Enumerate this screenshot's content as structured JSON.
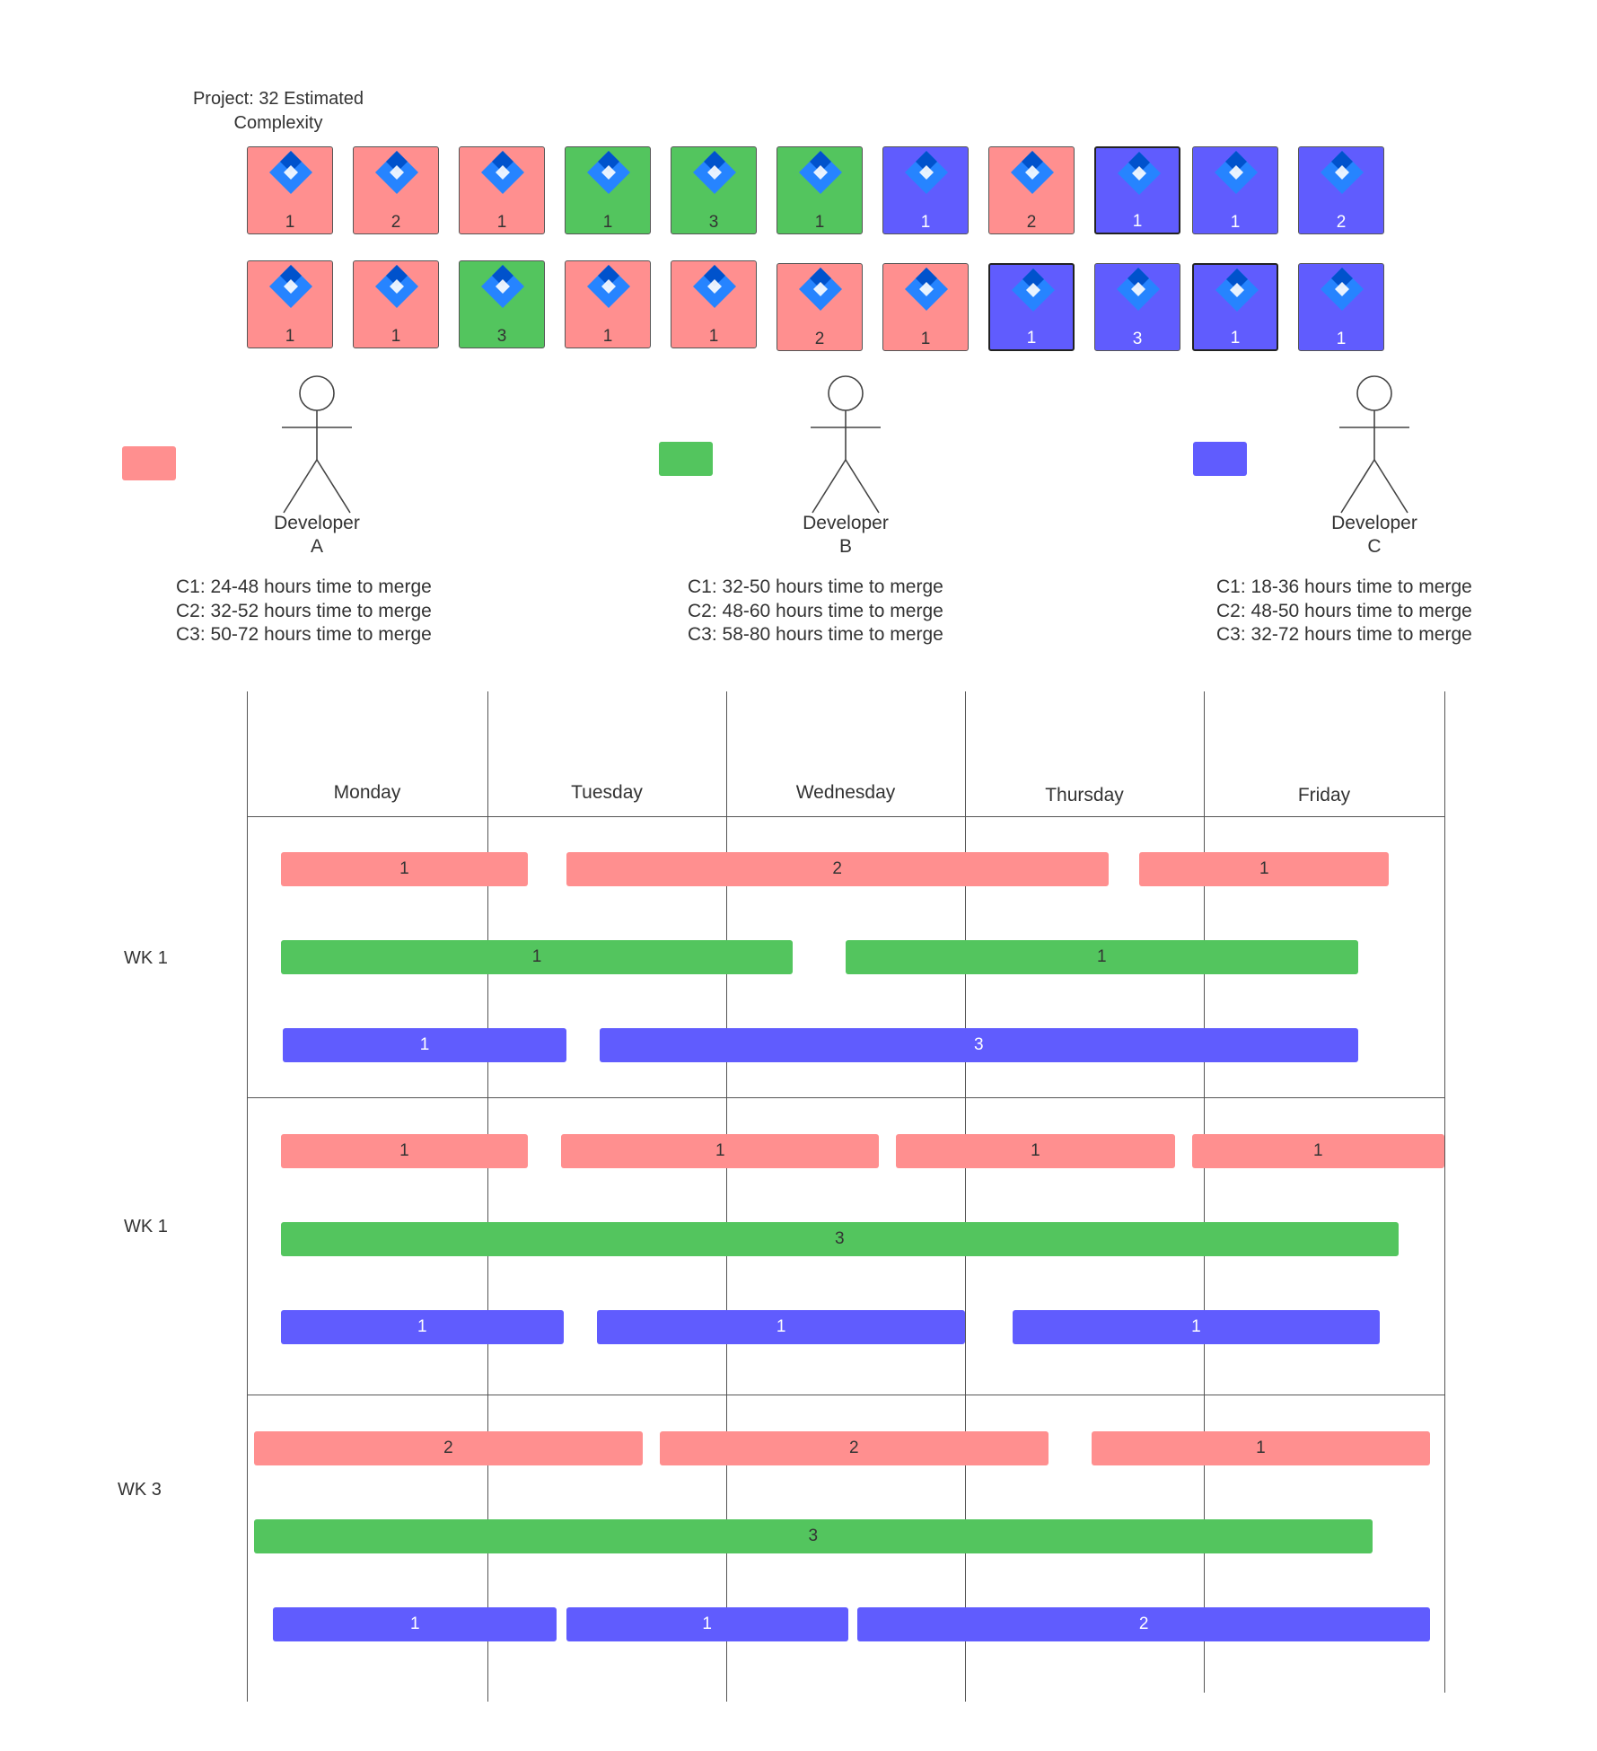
{
  "colors": {
    "red": "#FF8F8F",
    "green": "#53C55E",
    "blue": "#605CFE",
    "icon_light": "#2684FF",
    "icon_dark": "#0052CC"
  },
  "project": {
    "title_line1": "Project: 32 Estimated",
    "title_line2": "Complexity"
  },
  "tickets": {
    "row1": [
      {
        "color": "red",
        "value": "1"
      },
      {
        "color": "red",
        "value": "2"
      },
      {
        "color": "red",
        "value": "1"
      },
      {
        "color": "green",
        "value": "1"
      },
      {
        "color": "green",
        "value": "3"
      },
      {
        "color": "green",
        "value": "1"
      },
      {
        "color": "blue",
        "value": "1"
      },
      {
        "color": "red",
        "value": "2"
      },
      {
        "color": "blue",
        "value": "1"
      },
      {
        "color": "blue",
        "value": "1"
      },
      {
        "color": "blue",
        "value": "2"
      }
    ],
    "row2": [
      {
        "color": "red",
        "value": "1"
      },
      {
        "color": "red",
        "value": "1"
      },
      {
        "color": "green",
        "value": "3"
      },
      {
        "color": "red",
        "value": "1"
      },
      {
        "color": "red",
        "value": "1"
      },
      {
        "color": "red",
        "value": "2"
      },
      {
        "color": "red",
        "value": "1"
      },
      {
        "color": "blue",
        "value": "1"
      },
      {
        "color": "blue",
        "value": "3"
      },
      {
        "color": "blue",
        "value": "1"
      },
      {
        "color": "blue",
        "value": "1"
      }
    ]
  },
  "developers": [
    {
      "color": "red",
      "name_line1": "Developer",
      "name_line2": "A",
      "stats": [
        "C1: 24-48 hours time to merge",
        "C2: 32-52 hours time to merge",
        "C3: 50-72 hours time to merge"
      ]
    },
    {
      "color": "green",
      "name_line1": "Developer",
      "name_line2": "B",
      "stats": [
        "C1: 32-50 hours time to merge",
        "C2: 48-60 hours time to merge",
        "C3: 58-80 hours time to merge"
      ]
    },
    {
      "color": "blue",
      "name_line1": "Developer",
      "name_line2": "C",
      "stats": [
        "C1: 18-36 hours time to merge",
        "C2: 48-50 hours time to merge",
        "C3: 32-72 hours time to merge"
      ]
    }
  ],
  "days": [
    "Monday",
    "Tuesday",
    "Wednesday",
    "Thursday",
    "Friday"
  ],
  "weeks": [
    {
      "label": "WK 1",
      "rows": [
        {
          "color": "red",
          "bars": [
            {
              "start": 0.14,
              "end": 1.17,
              "value": "1"
            },
            {
              "start": 1.33,
              "end": 3.6,
              "value": "2"
            },
            {
              "start": 3.73,
              "end": 4.77,
              "value": "1"
            }
          ]
        },
        {
          "color": "green",
          "bars": [
            {
              "start": 0.14,
              "end": 2.28,
              "value": "1"
            },
            {
              "start": 2.5,
              "end": 4.64,
              "value": "1"
            }
          ]
        },
        {
          "color": "blue",
          "bars": [
            {
              "start": 0.15,
              "end": 1.33,
              "value": "1"
            },
            {
              "start": 1.47,
              "end": 4.64,
              "value": "3"
            }
          ]
        }
      ]
    },
    {
      "label": "WK 1",
      "rows": [
        {
          "color": "red",
          "bars": [
            {
              "start": 0.14,
              "end": 1.17,
              "value": "1"
            },
            {
              "start": 1.31,
              "end": 2.64,
              "value": "1"
            },
            {
              "start": 2.71,
              "end": 3.88,
              "value": "1"
            },
            {
              "start": 3.95,
              "end": 5.0,
              "value": "1"
            }
          ]
        },
        {
          "color": "green",
          "bars": [
            {
              "start": 0.14,
              "end": 4.81,
              "value": "3"
            }
          ]
        },
        {
          "color": "blue",
          "bars": [
            {
              "start": 0.14,
              "end": 1.32,
              "value": "1"
            },
            {
              "start": 1.46,
              "end": 3.0,
              "value": "1"
            },
            {
              "start": 3.2,
              "end": 4.73,
              "value": "1"
            }
          ]
        }
      ]
    },
    {
      "label": "WK 3",
      "rows": [
        {
          "color": "red",
          "bars": [
            {
              "start": 0.03,
              "end": 1.65,
              "value": "2"
            },
            {
              "start": 1.72,
              "end": 3.35,
              "value": "2"
            },
            {
              "start": 3.53,
              "end": 4.94,
              "value": "1"
            }
          ]
        },
        {
          "color": "green",
          "bars": [
            {
              "start": 0.03,
              "end": 4.7,
              "value": "3"
            }
          ]
        },
        {
          "color": "blue",
          "bars": [
            {
              "start": 0.11,
              "end": 1.29,
              "value": "1"
            },
            {
              "start": 1.33,
              "end": 2.51,
              "value": "1"
            },
            {
              "start": 2.55,
              "end": 4.94,
              "value": "2"
            }
          ]
        }
      ]
    }
  ]
}
